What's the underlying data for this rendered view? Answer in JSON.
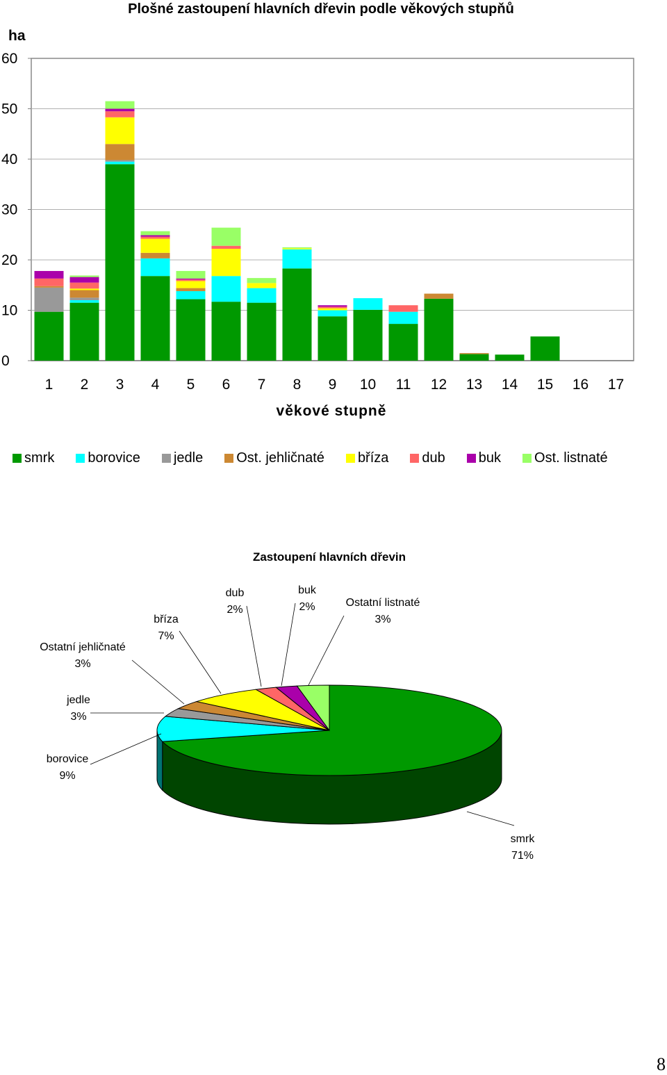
{
  "chart_data": [
    {
      "type": "bar",
      "stacked": true,
      "title": "Plošné zastoupení hlavních dřevin podle věkových stupňů",
      "ylabel": "ha",
      "xlabel": "věkové stupně",
      "ylim": [
        0,
        60
      ],
      "yticks": [
        "0",
        "10",
        "20",
        "30",
        "40",
        "50",
        "60"
      ],
      "grid": true,
      "legend_position": "bottom",
      "categories": [
        "1",
        "2",
        "3",
        "4",
        "5",
        "6",
        "7",
        "8",
        "9",
        "10",
        "11",
        "12",
        "13",
        "14",
        "15",
        "16",
        "17"
      ],
      "series": [
        {
          "name": "smrk",
          "color": "#009900",
          "values": [
            9.7,
            11.5,
            39.0,
            16.8,
            12.2,
            11.7,
            11.5,
            18.3,
            8.8,
            10.1,
            7.3,
            12.3,
            1.3,
            1.2,
            4.8,
            0,
            0
          ]
        },
        {
          "name": "borovice",
          "color": "#00FFFF",
          "values": [
            0,
            0.5,
            0.5,
            3.5,
            1.6,
            5.1,
            2.9,
            3.8,
            1.2,
            2.3,
            2.4,
            0,
            0,
            0,
            0,
            0,
            0
          ]
        },
        {
          "name": "jedle",
          "color": "#999999",
          "values": [
            4.8,
            0.5,
            0.3,
            0,
            0,
            0,
            0,
            0,
            0,
            0,
            0,
            0,
            0,
            0,
            0,
            0,
            0
          ]
        },
        {
          "name": "Ost. jehličnaté",
          "color": "#CC8833",
          "values": [
            0.3,
            1.5,
            3.2,
            1.1,
            0.6,
            0,
            0,
            0,
            0,
            0,
            0,
            1.0,
            0.2,
            0,
            0,
            0,
            0
          ]
        },
        {
          "name": "bříza",
          "color": "#FFFF00",
          "values": [
            0,
            0.3,
            5.3,
            2.8,
            1.4,
            5.4,
            1.0,
            0.2,
            0.4,
            0,
            0,
            0,
            0,
            0,
            0,
            0,
            0
          ]
        },
        {
          "name": "dub",
          "color": "#FF6666",
          "values": [
            1.5,
            1.2,
            1.2,
            0.4,
            0.3,
            0.6,
            0,
            0,
            0.3,
            0,
            1.3,
            0,
            0,
            0,
            0,
            0,
            0
          ]
        },
        {
          "name": "buk",
          "color": "#AA00AA",
          "values": [
            1.5,
            1.1,
            0.5,
            0.3,
            0.2,
            0,
            0,
            0,
            0.3,
            0,
            0,
            0,
            0,
            0,
            0,
            0,
            0
          ]
        },
        {
          "name": "Ost. listnaté",
          "color": "#99FF66",
          "values": [
            0,
            0.3,
            1.5,
            0.8,
            1.5,
            3.6,
            1.0,
            0.2,
            0,
            0,
            0,
            0,
            0,
            0,
            0,
            0,
            0
          ]
        }
      ]
    },
    {
      "type": "pie",
      "three_d": true,
      "title": "Zastoupení hlavních dřevin",
      "slices": [
        {
          "name": "smrk",
          "value": 71,
          "label": "71%",
          "color": "#009900"
        },
        {
          "name": "borovice",
          "value": 9,
          "label": "9%",
          "color": "#00FFFF"
        },
        {
          "name": "jedle",
          "value": 3,
          "label": "3%",
          "color": "#999999"
        },
        {
          "name": "Ostatní jehličnaté",
          "value": 3,
          "label": "3%",
          "color": "#CC8833"
        },
        {
          "name": "bříza",
          "value": 7,
          "label": "7%",
          "color": "#FFFF00"
        },
        {
          "name": "dub",
          "value": 2,
          "label": "2%",
          "color": "#FF6666"
        },
        {
          "name": "buk",
          "value": 2,
          "label": "2%",
          "color": "#AA00AA"
        },
        {
          "name": "Ostatní listnaté",
          "value": 3,
          "label": "3%",
          "color": "#99FF66"
        }
      ]
    }
  ],
  "page": {
    "number": "8"
  }
}
